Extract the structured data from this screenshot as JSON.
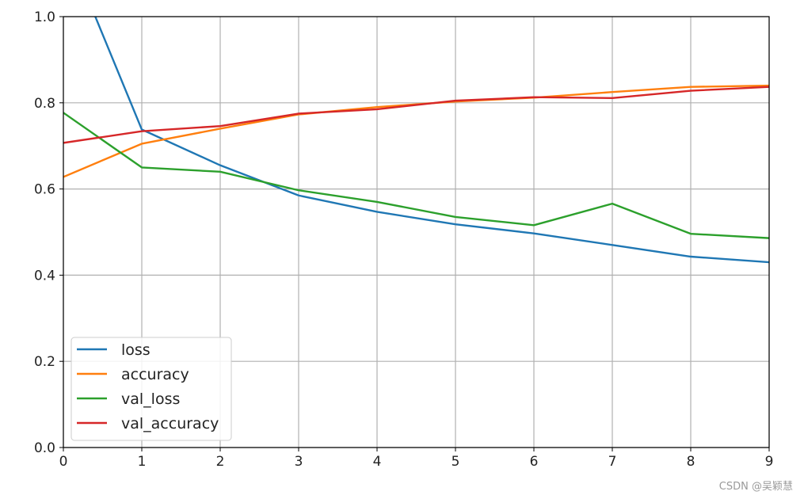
{
  "chart_data": {
    "type": "line",
    "title": "",
    "xlabel": "",
    "ylabel": "",
    "x": [
      0,
      1,
      2,
      3,
      4,
      5,
      6,
      7,
      8,
      9
    ],
    "xlim": [
      0,
      9
    ],
    "ylim": [
      0,
      1
    ],
    "xticks": [
      "0",
      "1",
      "2",
      "3",
      "4",
      "5",
      "6",
      "7",
      "8",
      "9"
    ],
    "yticks": [
      "0.0",
      "0.2",
      "0.4",
      "0.6",
      "0.8",
      "1.0"
    ],
    "grid": true,
    "legend_position": "lower-left",
    "series": [
      {
        "name": "loss",
        "color": "#1f77b4",
        "values": [
          1.18,
          0.738,
          0.655,
          0.585,
          0.547,
          0.518,
          0.497,
          0.47,
          0.443,
          0.43
        ]
      },
      {
        "name": "accuracy",
        "color": "#ff7f0e",
        "values": [
          0.628,
          0.705,
          0.74,
          0.773,
          0.79,
          0.803,
          0.812,
          0.825,
          0.837,
          0.84
        ]
      },
      {
        "name": "val_loss",
        "color": "#2ca02c",
        "values": [
          0.777,
          0.65,
          0.64,
          0.597,
          0.57,
          0.535,
          0.516,
          0.566,
          0.496,
          0.486
        ]
      },
      {
        "name": "val_accuracy",
        "color": "#d62728",
        "values": [
          0.707,
          0.734,
          0.746,
          0.775,
          0.785,
          0.805,
          0.813,
          0.811,
          0.828,
          0.837
        ]
      }
    ]
  },
  "watermark": "CSDN @吴颖慧"
}
